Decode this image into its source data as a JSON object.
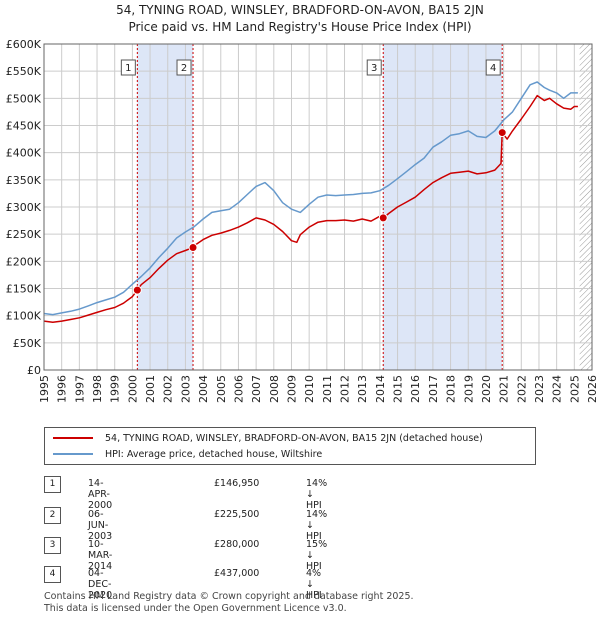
{
  "title_line1": "54, TYNING ROAD, WINSLEY, BRADFORD-ON-AVON, BA15 2JN",
  "title_line2": "Price paid vs. HM Land Registry's House Price Index (HPI)",
  "colors": {
    "property": "#cc0000",
    "hpi": "#6699cc",
    "shade": "#dde6f7",
    "grid": "#cccccc",
    "marker_border": "#cc0000"
  },
  "chart_data": {
    "type": "line",
    "xlim": [
      1995,
      2026
    ],
    "ylim": [
      0,
      600000
    ],
    "yticks": [
      0,
      50000,
      100000,
      150000,
      200000,
      250000,
      300000,
      350000,
      400000,
      450000,
      500000,
      550000,
      600000
    ],
    "ytick_labels": [
      "£0",
      "£50K",
      "£100K",
      "£150K",
      "£200K",
      "£250K",
      "£300K",
      "£350K",
      "£400K",
      "£450K",
      "£500K",
      "£550K",
      "£600K"
    ],
    "xticks": [
      1995,
      1996,
      1997,
      1998,
      1999,
      2000,
      2001,
      2002,
      2003,
      2004,
      2005,
      2006,
      2007,
      2008,
      2009,
      2010,
      2011,
      2012,
      2013,
      2014,
      2015,
      2016,
      2017,
      2018,
      2019,
      2020,
      2021,
      2022,
      2023,
      2024,
      2025,
      2026
    ],
    "xtick_labels": [
      "1995",
      "1996",
      "1997",
      "1998",
      "1999",
      "2000",
      "2001",
      "2002",
      "2003",
      "2004",
      "2005",
      "2006",
      "2007",
      "2008",
      "2009",
      "2010",
      "2011",
      "2012",
      "2013",
      "2014",
      "2015",
      "2016",
      "2017",
      "2018",
      "2019",
      "2020",
      "2021",
      "2022",
      "2023",
      "2024",
      "2025",
      "2026"
    ],
    "shaded_regions": [
      [
        2000.28,
        2003.43
      ],
      [
        2014.19,
        2020.92
      ]
    ],
    "hatch_start": 2025.3,
    "series": [
      {
        "name": "54, TYNING ROAD, WINSLEY, BRADFORD-ON-AVON, BA15 2JN (detached house)",
        "color": "#cc0000",
        "x": [
          1995.0,
          1995.5,
          1996.0,
          1996.5,
          1997.0,
          1997.5,
          1998.0,
          1998.5,
          1999.0,
          1999.5,
          2000.0,
          2000.28,
          2000.5,
          2001.0,
          2001.5,
          2002.0,
          2002.5,
          2003.0,
          2003.43,
          2003.5,
          2004.0,
          2004.5,
          2005.0,
          2005.5,
          2006.0,
          2006.5,
          2007.0,
          2007.5,
          2008.0,
          2008.5,
          2009.0,
          2009.3,
          2009.5,
          2010.0,
          2010.5,
          2011.0,
          2011.5,
          2012.0,
          2012.5,
          2013.0,
          2013.5,
          2014.0,
          2014.19,
          2014.5,
          2015.0,
          2015.5,
          2016.0,
          2016.5,
          2017.0,
          2017.5,
          2018.0,
          2018.5,
          2019.0,
          2019.5,
          2020.0,
          2020.5,
          2020.85,
          2020.92,
          2021.2,
          2021.5,
          2022.0,
          2022.5,
          2022.9,
          2023.3,
          2023.6,
          2024.0,
          2024.4,
          2024.8,
          2025.0,
          2025.2
        ],
        "y": [
          90000,
          88000,
          90000,
          93000,
          96000,
          101000,
          106000,
          111000,
          115000,
          123000,
          135000,
          146950,
          157000,
          170000,
          187000,
          202000,
          214000,
          220000,
          225500,
          229000,
          240000,
          248000,
          252000,
          257000,
          263000,
          271000,
          280000,
          276000,
          268000,
          255000,
          238000,
          235000,
          249000,
          263000,
          272000,
          275000,
          275000,
          276000,
          274000,
          278000,
          274000,
          283000,
          280000,
          288000,
          300000,
          309000,
          318000,
          332000,
          345000,
          354000,
          362000,
          364000,
          366000,
          361000,
          363000,
          368000,
          380000,
          437000,
          425000,
          440000,
          462000,
          485000,
          505000,
          496000,
          500000,
          490000,
          482000,
          480000,
          485000,
          485000
        ]
      },
      {
        "name": "HPI: Average price, detached house, Wiltshire",
        "color": "#6699cc",
        "x": [
          1995.0,
          1995.5,
          1996.0,
          1996.5,
          1997.0,
          1997.5,
          1998.0,
          1998.5,
          1999.0,
          1999.5,
          2000.0,
          2000.5,
          2001.0,
          2001.5,
          2002.0,
          2002.5,
          2003.0,
          2003.5,
          2004.0,
          2004.5,
          2005.0,
          2005.5,
          2006.0,
          2006.5,
          2007.0,
          2007.5,
          2008.0,
          2008.5,
          2009.0,
          2009.5,
          2010.0,
          2010.5,
          2011.0,
          2011.5,
          2012.0,
          2012.5,
          2013.0,
          2013.5,
          2014.0,
          2014.5,
          2015.0,
          2015.5,
          2016.0,
          2016.5,
          2017.0,
          2017.5,
          2018.0,
          2018.5,
          2019.0,
          2019.5,
          2020.0,
          2020.5,
          2021.0,
          2021.5,
          2022.0,
          2022.5,
          2022.9,
          2023.3,
          2023.6,
          2024.0,
          2024.4,
          2024.8,
          2025.0,
          2025.2
        ],
        "y": [
          104000,
          102000,
          105000,
          108000,
          112000,
          118000,
          124000,
          129000,
          134000,
          143000,
          158000,
          172000,
          188000,
          207000,
          224000,
          243000,
          254000,
          264000,
          278000,
          290000,
          293000,
          296000,
          308000,
          323000,
          338000,
          345000,
          330000,
          308000,
          296000,
          290000,
          305000,
          318000,
          322000,
          321000,
          322000,
          323000,
          325000,
          326000,
          330000,
          340000,
          352000,
          365000,
          378000,
          390000,
          410000,
          420000,
          432000,
          435000,
          440000,
          430000,
          428000,
          440000,
          460000,
          475000,
          500000,
          525000,
          530000,
          520000,
          515000,
          510000,
          500000,
          510000,
          510000,
          510000
        ]
      }
    ],
    "sale_markers": [
      {
        "label": "1",
        "x": 2000.28,
        "y": 146950
      },
      {
        "label": "2",
        "x": 2003.43,
        "y": 225500
      },
      {
        "label": "3",
        "x": 2014.19,
        "y": 280000
      },
      {
        "label": "4",
        "x": 2020.92,
        "y": 437000
      }
    ]
  },
  "legend": {
    "property_label": "54, TYNING ROAD, WINSLEY, BRADFORD-ON-AVON, BA15 2JN (detached house)",
    "hpi_label": "HPI: Average price, detached house, Wiltshire"
  },
  "transactions": [
    {
      "num": "1",
      "date": "14-APR-2000",
      "price": "£146,950",
      "hpi": "14% ↓ HPI"
    },
    {
      "num": "2",
      "date": "06-JUN-2003",
      "price": "£225,500",
      "hpi": "14% ↓ HPI"
    },
    {
      "num": "3",
      "date": "10-MAR-2014",
      "price": "£280,000",
      "hpi": "15% ↓ HPI"
    },
    {
      "num": "4",
      "date": "04-DEC-2020",
      "price": "£437,000",
      "hpi": "4% ↓ HPI"
    }
  ],
  "footer_line1": "Contains HM Land Registry data © Crown copyright and database right 2025.",
  "footer_line2": "This data is licensed under the Open Government Licence v3.0."
}
